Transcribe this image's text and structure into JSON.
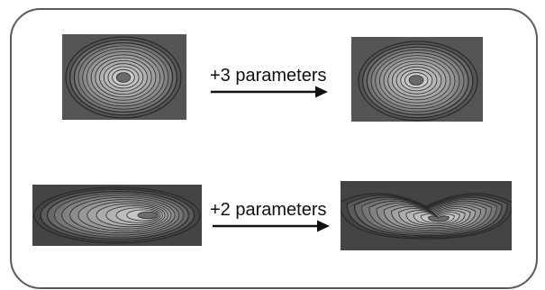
{
  "rows": [
    {
      "arrow_label": "+3 parameters",
      "before": {
        "shape": "elliptical-contours",
        "rings": 13,
        "colors": {
          "background": "#555555",
          "inner": "#d0d0d0",
          "center": "#6a6a6a",
          "line": "#2b2b2b"
        }
      },
      "after": {
        "shape": "elliptical-contours-distorted",
        "rings": 13,
        "colors": {
          "background": "#555555",
          "inner": "#d0d0d0",
          "center": "#6a6a6a",
          "line": "#2b2b2b"
        }
      }
    },
    {
      "arrow_label": "+2 parameters",
      "before": {
        "shape": "flat-elliptical-contours",
        "rings": 13,
        "colors": {
          "background": "#444444",
          "inner": "#cfcfcf",
          "center": "#6a6a6a",
          "line": "#2b2b2b"
        }
      },
      "after": {
        "shape": "banana-contours",
        "rings": 13,
        "colors": {
          "background": "#444444",
          "inner": "#cfcfcf",
          "center": "#6a6a6a",
          "line": "#2b2b2b"
        }
      }
    }
  ],
  "colors": {
    "frame": "#5a5a5a",
    "arrow": "#111111",
    "text": "#111111"
  }
}
